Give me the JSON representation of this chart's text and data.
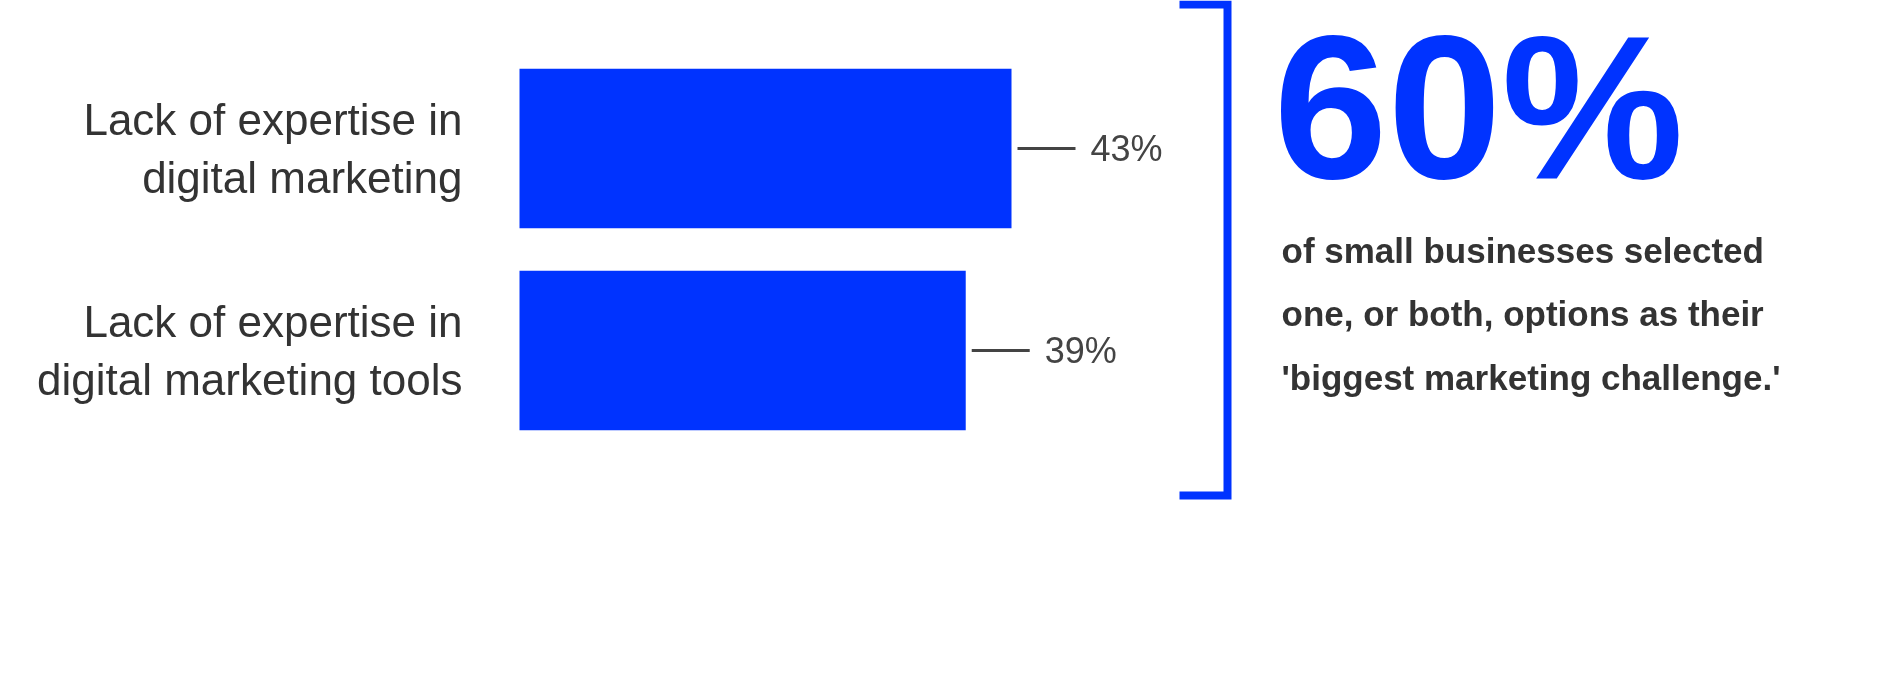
{
  "chart_data": {
    "type": "bar",
    "orientation": "horizontal",
    "categories": [
      "Lack of expertise in digital marketing",
      "Lack of expertise in digital marketing tools"
    ],
    "values": [
      43,
      39
    ],
    "value_labels": [
      "43%",
      "39%"
    ],
    "color": "#0033ff",
    "tick_labels": "y",
    "annotations": [
      "60%",
      "of small businesses selected one, or both, options as their 'biggest marketing challenge.'"
    ]
  }
}
